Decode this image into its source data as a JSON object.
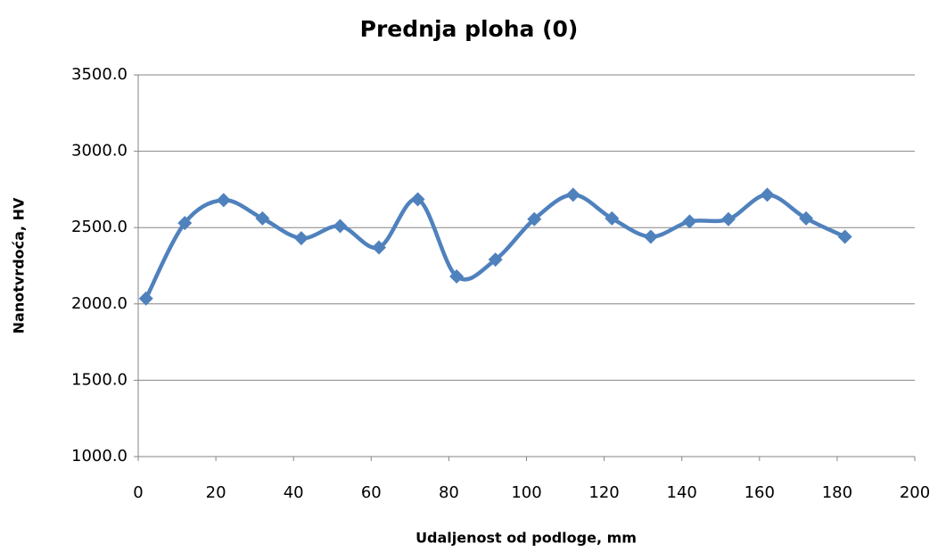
{
  "chart_data": {
    "type": "line",
    "title": "Prednja ploha (0)",
    "x_label": "Udaljenost od podloge, mm",
    "y_label": "Nanotvrdoća, HV",
    "x": [
      2,
      12,
      22,
      32,
      42,
      52,
      62,
      72,
      82,
      92,
      102,
      112,
      122,
      132,
      142,
      152,
      162,
      172,
      182
    ],
    "series": [
      {
        "color": "#4f81bd",
        "values": [
          2035,
          2530,
          2680,
          2560,
          2430,
          2510,
          2370,
          2685,
          2180,
          2290,
          2555,
          2715,
          2560,
          2440,
          2540,
          2555,
          2715,
          2560,
          2440
        ]
      }
    ],
    "xlim": [
      0,
      200
    ],
    "xticks": [
      0,
      20,
      40,
      60,
      80,
      100,
      120,
      140,
      160,
      180,
      200
    ],
    "ylim": [
      1000,
      3500
    ],
    "yticks": [
      {
        "value": 1000,
        "label": "1000.0"
      },
      {
        "value": 1500,
        "label": "1500.0"
      },
      {
        "value": 2000,
        "label": "2000.0"
      },
      {
        "value": 2500,
        "label": "2500.0"
      },
      {
        "value": 3000,
        "label": "3000.0"
      },
      {
        "value": 3500,
        "label": "3500.0"
      }
    ],
    "grid": true,
    "smooth": true
  }
}
